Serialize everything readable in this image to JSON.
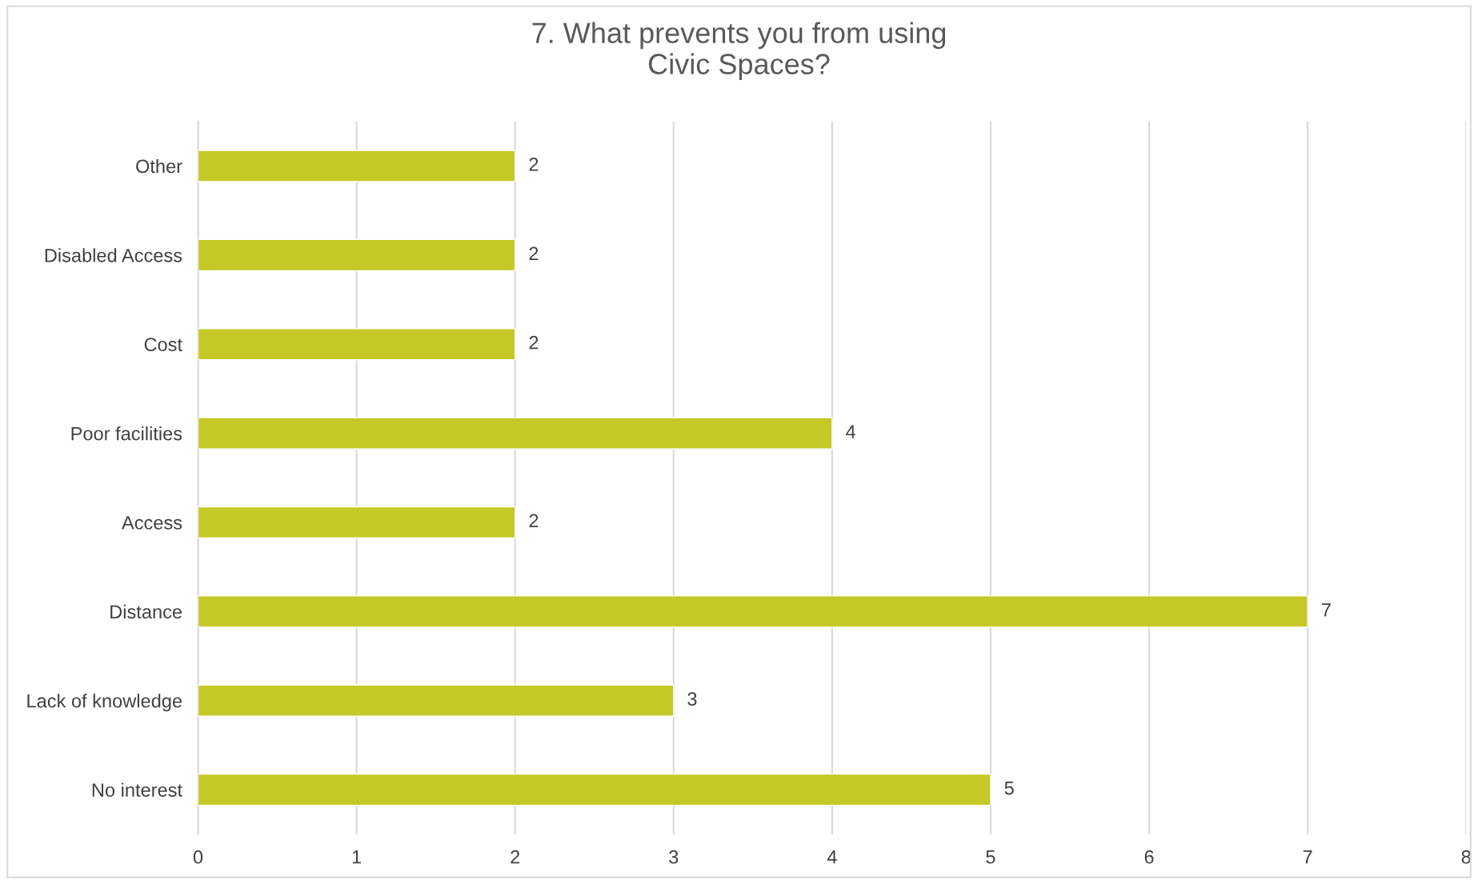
{
  "chart_data": {
    "type": "bar",
    "orientation": "horizontal",
    "title": "7. What prevents you from using\nCivic Spaces?",
    "categories": [
      "Other",
      "Disabled Access",
      "Cost",
      "Poor facilities",
      "Access",
      "Distance",
      "Lack of knowledge",
      "No interest"
    ],
    "values": [
      2,
      2,
      2,
      4,
      2,
      7,
      3,
      5
    ],
    "color": "#c4c927",
    "xlim": [
      0,
      8
    ],
    "xticks": [
      0,
      1,
      2,
      3,
      4,
      5,
      6,
      7,
      8
    ],
    "grid": "x",
    "data_labels": true,
    "legend": false
  }
}
